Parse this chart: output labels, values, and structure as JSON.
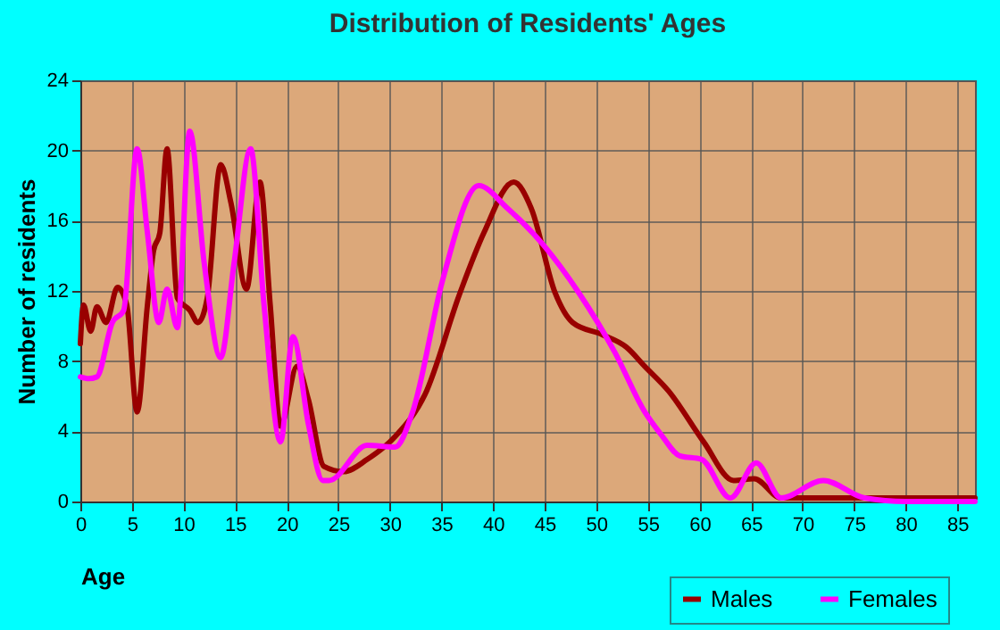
{
  "chart_data": {
    "type": "line",
    "title": "Distribution of Residents' Ages",
    "xlabel": "Age",
    "ylabel": "Number of residents",
    "xlim": [
      0,
      86.7
    ],
    "xticks": [
      0,
      5,
      10,
      15,
      20,
      25,
      30,
      35,
      40,
      45,
      50,
      55,
      60,
      65,
      70,
      75,
      80,
      85
    ],
    "ylim": [
      0,
      24
    ],
    "yticks": [
      0,
      4,
      8,
      12,
      16,
      20,
      24
    ],
    "grid": true,
    "legend": "bottom",
    "marker": "none",
    "line_style": "solid",
    "series": [
      {
        "name": "Males",
        "color": "#990000",
        "x": [
          0,
          0.3,
          1,
          1.6,
          2.5,
          3.6,
          4.5,
          5.5,
          6.5,
          7.1,
          7.7,
          8.4,
          9.4,
          10.6,
          11.4,
          12.3,
          13.6,
          14.6,
          16.1,
          17.4,
          18.4,
          19.4,
          21,
          22.1,
          23.6,
          25.5,
          27.8,
          30.5,
          33.4,
          36.8,
          39.1,
          42,
          43.7,
          46,
          47.7,
          50.6,
          52.9,
          54.7,
          57,
          60.4,
          63.3,
          65.3,
          67.9,
          72,
          80,
          86.7
        ],
        "values": [
          9.0,
          11.2,
          9.7,
          11.1,
          10.2,
          12.2,
          11.2,
          5.1,
          11.2,
          14.3,
          15.3,
          20.1,
          11.6,
          10.9,
          10.2,
          11.6,
          19.2,
          17.0,
          12.1,
          18.2,
          11.2,
          4.3,
          7.7,
          5.8,
          2.0,
          1.7,
          2.4,
          3.7,
          6.1,
          11.9,
          15.3,
          18.2,
          16.7,
          11.9,
          10.2,
          9.5,
          8.8,
          7.7,
          6.3,
          3.4,
          1.2,
          1.3,
          0.2,
          0.2,
          0.2,
          0.2
        ]
      },
      {
        "name": "Females",
        "color": "#ff00ff",
        "x": [
          0,
          0.8,
          1.6,
          3.1,
          4.2,
          5.5,
          6.5,
          7.6,
          8.4,
          9.4,
          10.6,
          12,
          13.6,
          14.9,
          16.5,
          17.8,
          19.4,
          20.6,
          22.1,
          23.5,
          24.1,
          27.8,
          30.5,
          32.2,
          35.1,
          38.6,
          41.4,
          44.9,
          48.3,
          51.8,
          54.7,
          56.3,
          58.1,
          60.2,
          63,
          65.5,
          67.9,
          72,
          76,
          80,
          86.7
        ],
        "values": [
          7.1,
          7.0,
          7.1,
          10.2,
          10.9,
          20.1,
          15.3,
          10.2,
          12.1,
          9.9,
          21.1,
          13.6,
          8.2,
          13.6,
          20.1,
          11.2,
          3.4,
          9.4,
          4.4,
          1.2,
          1.2,
          3.2,
          3.1,
          5.1,
          12.6,
          18.0,
          16.7,
          14.6,
          11.9,
          8.5,
          5.1,
          3.8,
          2.6,
          2.4,
          0.2,
          2.2,
          0.2,
          1.2,
          0.2,
          0.0,
          0.0
        ]
      }
    ]
  }
}
